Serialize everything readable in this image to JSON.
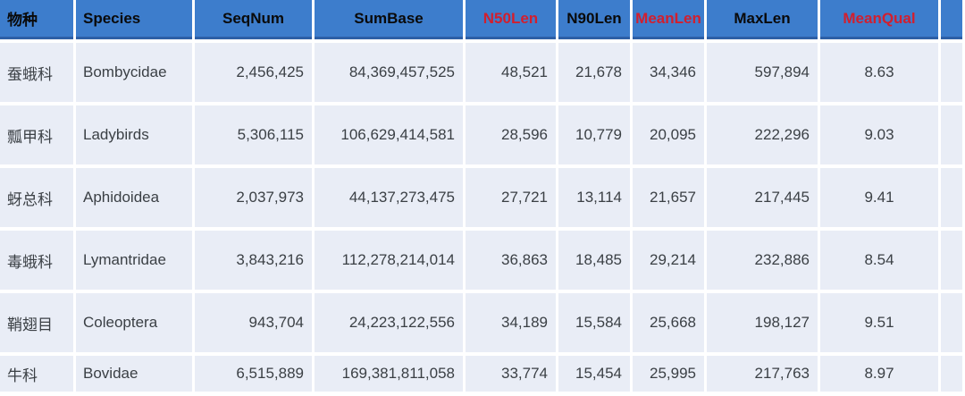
{
  "table": {
    "header": {
      "species_cn": "物种",
      "species": "Species",
      "seqnum": "SeqNum",
      "sumbase": "SumBase",
      "n50len": "N50Len",
      "n90len": "N90Len",
      "meanlen": "MeanLen",
      "maxlen": "MaxLen",
      "meanqual": "MeanQual"
    },
    "rows": [
      {
        "species_cn": "蚕蛾科",
        "species": "Bombycidae",
        "seqnum": "2,456,425",
        "sumbase": "84,369,457,525",
        "n50len": "48,521",
        "n90len": "21,678",
        "meanlen": "34,346",
        "maxlen": "597,894",
        "meanqual": "8.63"
      },
      {
        "species_cn": "瓢甲科",
        "species": "Ladybirds",
        "seqnum": "5,306,115",
        "sumbase": "106,629,414,581",
        "n50len": "28,596",
        "n90len": "10,779",
        "meanlen": "20,095",
        "maxlen": "222,296",
        "meanqual": "9.03"
      },
      {
        "species_cn": "蚜总科",
        "species": "Aphidoidea",
        "seqnum": "2,037,973",
        "sumbase": "44,137,273,475",
        "n50len": "27,721",
        "n90len": "13,114",
        "meanlen": "21,657",
        "maxlen": "217,445",
        "meanqual": "9.41"
      },
      {
        "species_cn": "毒蛾科",
        "species": "Lymantridae",
        "seqnum": "3,843,216",
        "sumbase": "112,278,214,014",
        "n50len": "36,863",
        "n90len": "18,485",
        "meanlen": "29,214",
        "maxlen": "232,886",
        "meanqual": "8.54"
      },
      {
        "species_cn": "鞘翅目",
        "species": "Coleoptera",
        "seqnum": "943,704",
        "sumbase": "24,223,122,556",
        "n50len": "34,189",
        "n90len": "15,584",
        "meanlen": "25,668",
        "maxlen": "198,127",
        "meanqual": "9.51"
      },
      {
        "species_cn": "牛科",
        "species": "Bovidae",
        "seqnum": "6,515,889",
        "sumbase": "169,381,811,058",
        "n50len": "33,774",
        "n90len": "15,454",
        "meanlen": "25,995",
        "maxlen": "217,763",
        "meanqual": "8.97"
      }
    ]
  },
  "colors": {
    "header_bg": "#3d7dcc",
    "header_border_bottom": "#2d5fa6",
    "header_text": "#0a0a0a",
    "header_highlight_text": "#d21f2e",
    "row_bg": "#e9edf6",
    "body_text": "#3b4045",
    "grid_gap": "#ffffff"
  },
  "chart_data": {
    "type": "table",
    "columns": [
      "物种",
      "Species",
      "SeqNum",
      "SumBase",
      "N50Len",
      "N90Len",
      "MeanLen",
      "MaxLen",
      "MeanQual"
    ],
    "red_highlighted_columns": [
      "N50Len",
      "MeanLen",
      "MeanQual"
    ],
    "rows": [
      [
        "蚕蛾科",
        "Bombycidae",
        2456425,
        84369457525,
        48521,
        21678,
        34346,
        597894,
        8.63
      ],
      [
        "瓢甲科",
        "Ladybirds",
        5306115,
        106629414581,
        28596,
        10779,
        20095,
        222296,
        9.03
      ],
      [
        "蚜总科",
        "Aphidoidea",
        2037973,
        44137273475,
        27721,
        13114,
        21657,
        217445,
        9.41
      ],
      [
        "毒蛾科",
        "Lymantridae",
        3843216,
        112278214014,
        36863,
        18485,
        29214,
        232886,
        8.54
      ],
      [
        "鞘翅目",
        "Coleoptera",
        943704,
        24223122556,
        34189,
        15584,
        25668,
        198127,
        9.51
      ],
      [
        "牛科",
        "Bovidae",
        6515889,
        169381811058,
        33774,
        15454,
        25995,
        217763,
        8.97
      ]
    ]
  }
}
